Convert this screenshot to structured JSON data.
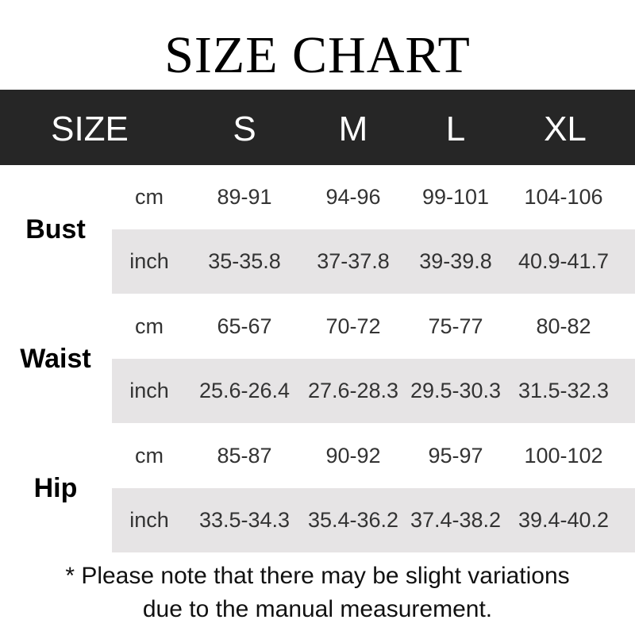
{
  "title": "SIZE CHART",
  "header": [
    "SIZE",
    "S",
    "M",
    "L",
    "XL"
  ],
  "groups": [
    {
      "label": "Bust",
      "rows": [
        {
          "unit": "cm",
          "values": [
            "89-91",
            "94-96",
            "99-101",
            "104-106"
          ]
        },
        {
          "unit": "inch",
          "values": [
            "35-35.8",
            "37-37.8",
            "39-39.8",
            "40.9-41.7"
          ]
        }
      ]
    },
    {
      "label": "Waist",
      "rows": [
        {
          "unit": "cm",
          "values": [
            "65-67",
            "70-72",
            "75-77",
            "80-82"
          ]
        },
        {
          "unit": "inch",
          "values": [
            "25.6-26.4",
            "27.6-28.3",
            "29.5-30.3",
            "31.5-32.3"
          ]
        }
      ]
    },
    {
      "label": "Hip",
      "rows": [
        {
          "unit": "cm",
          "values": [
            "85-87",
            "90-92",
            "95-97",
            "100-102"
          ]
        },
        {
          "unit": "inch",
          "values": [
            "33.5-34.3",
            "35.4-36.2",
            "37.4-38.2",
            "39.4-40.2"
          ]
        }
      ]
    }
  ],
  "note": [
    "* Please note that there may be slight variations",
    "due to the manual measurement."
  ],
  "colors": {
    "header_bg": "#262626",
    "stripe": "#e6e4e5"
  }
}
